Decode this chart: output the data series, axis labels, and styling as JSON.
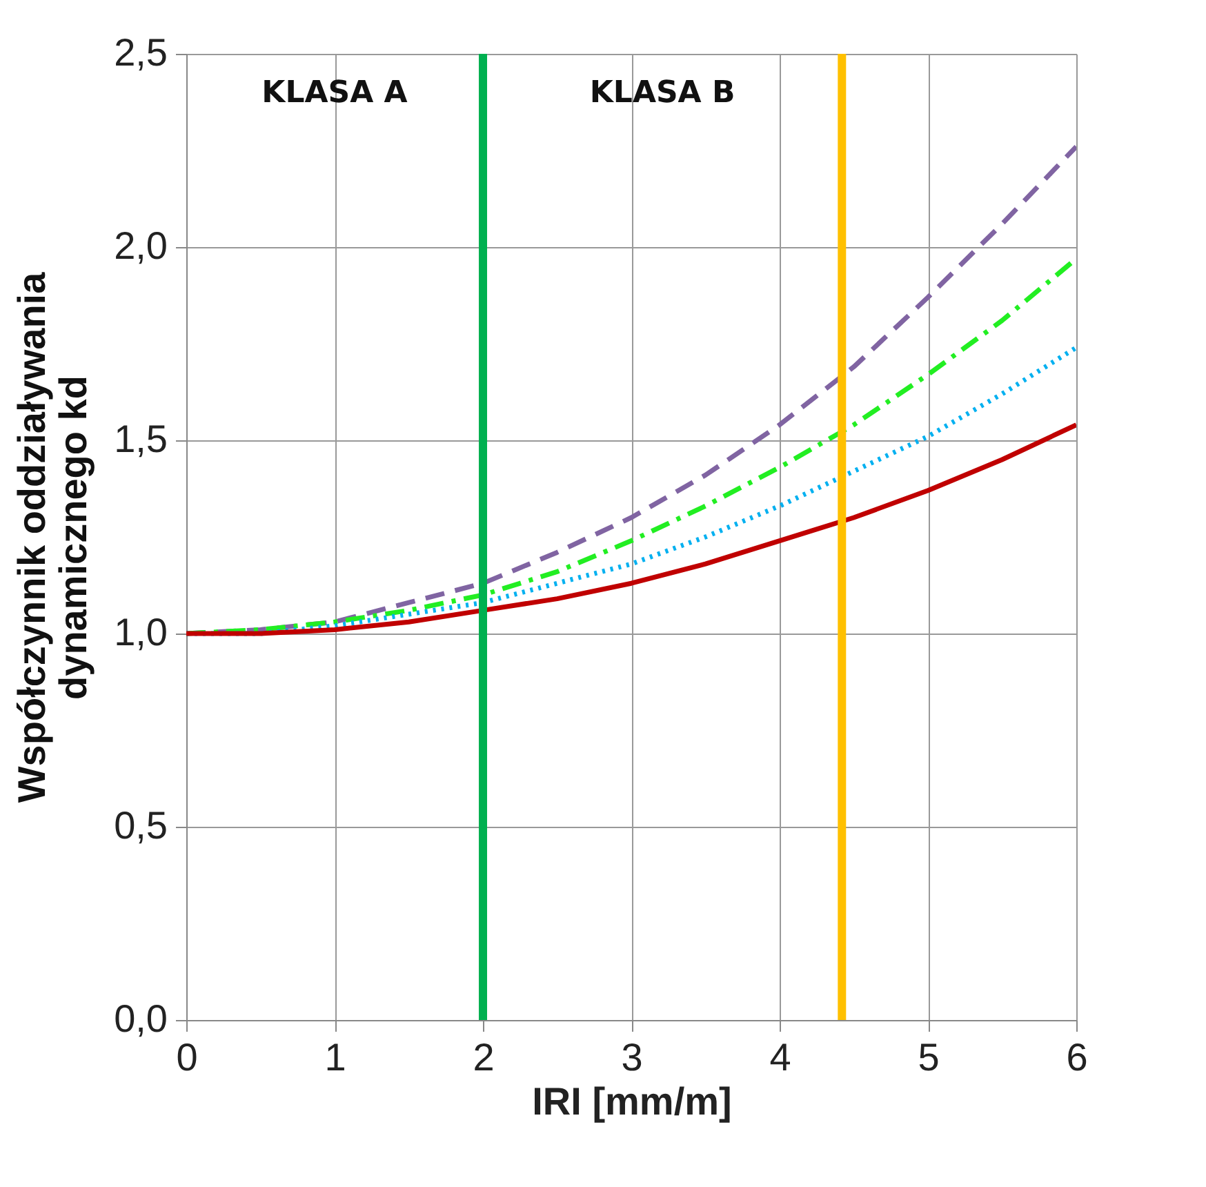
{
  "chart_data": {
    "type": "line",
    "xlabel": "IRI [mm/m]",
    "ylabel": "Współczynnik oddziaływania\ndynamicznego kd",
    "x": [
      0,
      0.5,
      1,
      1.5,
      2,
      2.5,
      3,
      3.5,
      4,
      4.5,
      5,
      5.5,
      6
    ],
    "series": [
      {
        "color": "#8064a2",
        "line_style": "dashed",
        "values": [
          1,
          1.01,
          1.03,
          1.08,
          1.13,
          1.21,
          1.3,
          1.41,
          1.54,
          1.69,
          1.87,
          2.06,
          2.26
        ]
      },
      {
        "color": "#22ee22",
        "line_style": "dashdot",
        "values": [
          1,
          1.01,
          1.03,
          1.06,
          1.1,
          1.16,
          1.24,
          1.33,
          1.43,
          1.54,
          1.67,
          1.81,
          1.97
        ]
      },
      {
        "color": "#00b0f0",
        "line_style": "dotted",
        "values": [
          1,
          1.0,
          1.02,
          1.05,
          1.08,
          1.13,
          1.18,
          1.25,
          1.33,
          1.42,
          1.51,
          1.62,
          1.74
        ]
      },
      {
        "color": "#c00000",
        "line_style": "solid",
        "values": [
          1,
          1.0,
          1.01,
          1.03,
          1.06,
          1.09,
          1.13,
          1.18,
          1.24,
          1.3,
          1.37,
          1.45,
          1.54
        ]
      }
    ],
    "xlim": [
      0,
      6
    ],
    "xticks": [
      0,
      1,
      2,
      3,
      4,
      5,
      6
    ],
    "ylim": [
      0,
      2.5
    ],
    "yticks": [
      {
        "value": 0,
        "label": "0,0"
      },
      {
        "value": 0.5,
        "label": "0,5"
      },
      {
        "value": 1,
        "label": "1,0"
      },
      {
        "value": 1.5,
        "label": "1,5"
      },
      {
        "value": 2,
        "label": "2,0"
      },
      {
        "value": 2.5,
        "label": "2,5"
      }
    ],
    "grid": true,
    "marker": "none",
    "ref_lines": [
      {
        "axis": "x",
        "value": 2,
        "color": "#00b050"
      },
      {
        "axis": "x",
        "value": 4.42,
        "color": "#ffc000"
      }
    ],
    "annotations": [
      "KLASA A",
      "KLASA B"
    ]
  }
}
